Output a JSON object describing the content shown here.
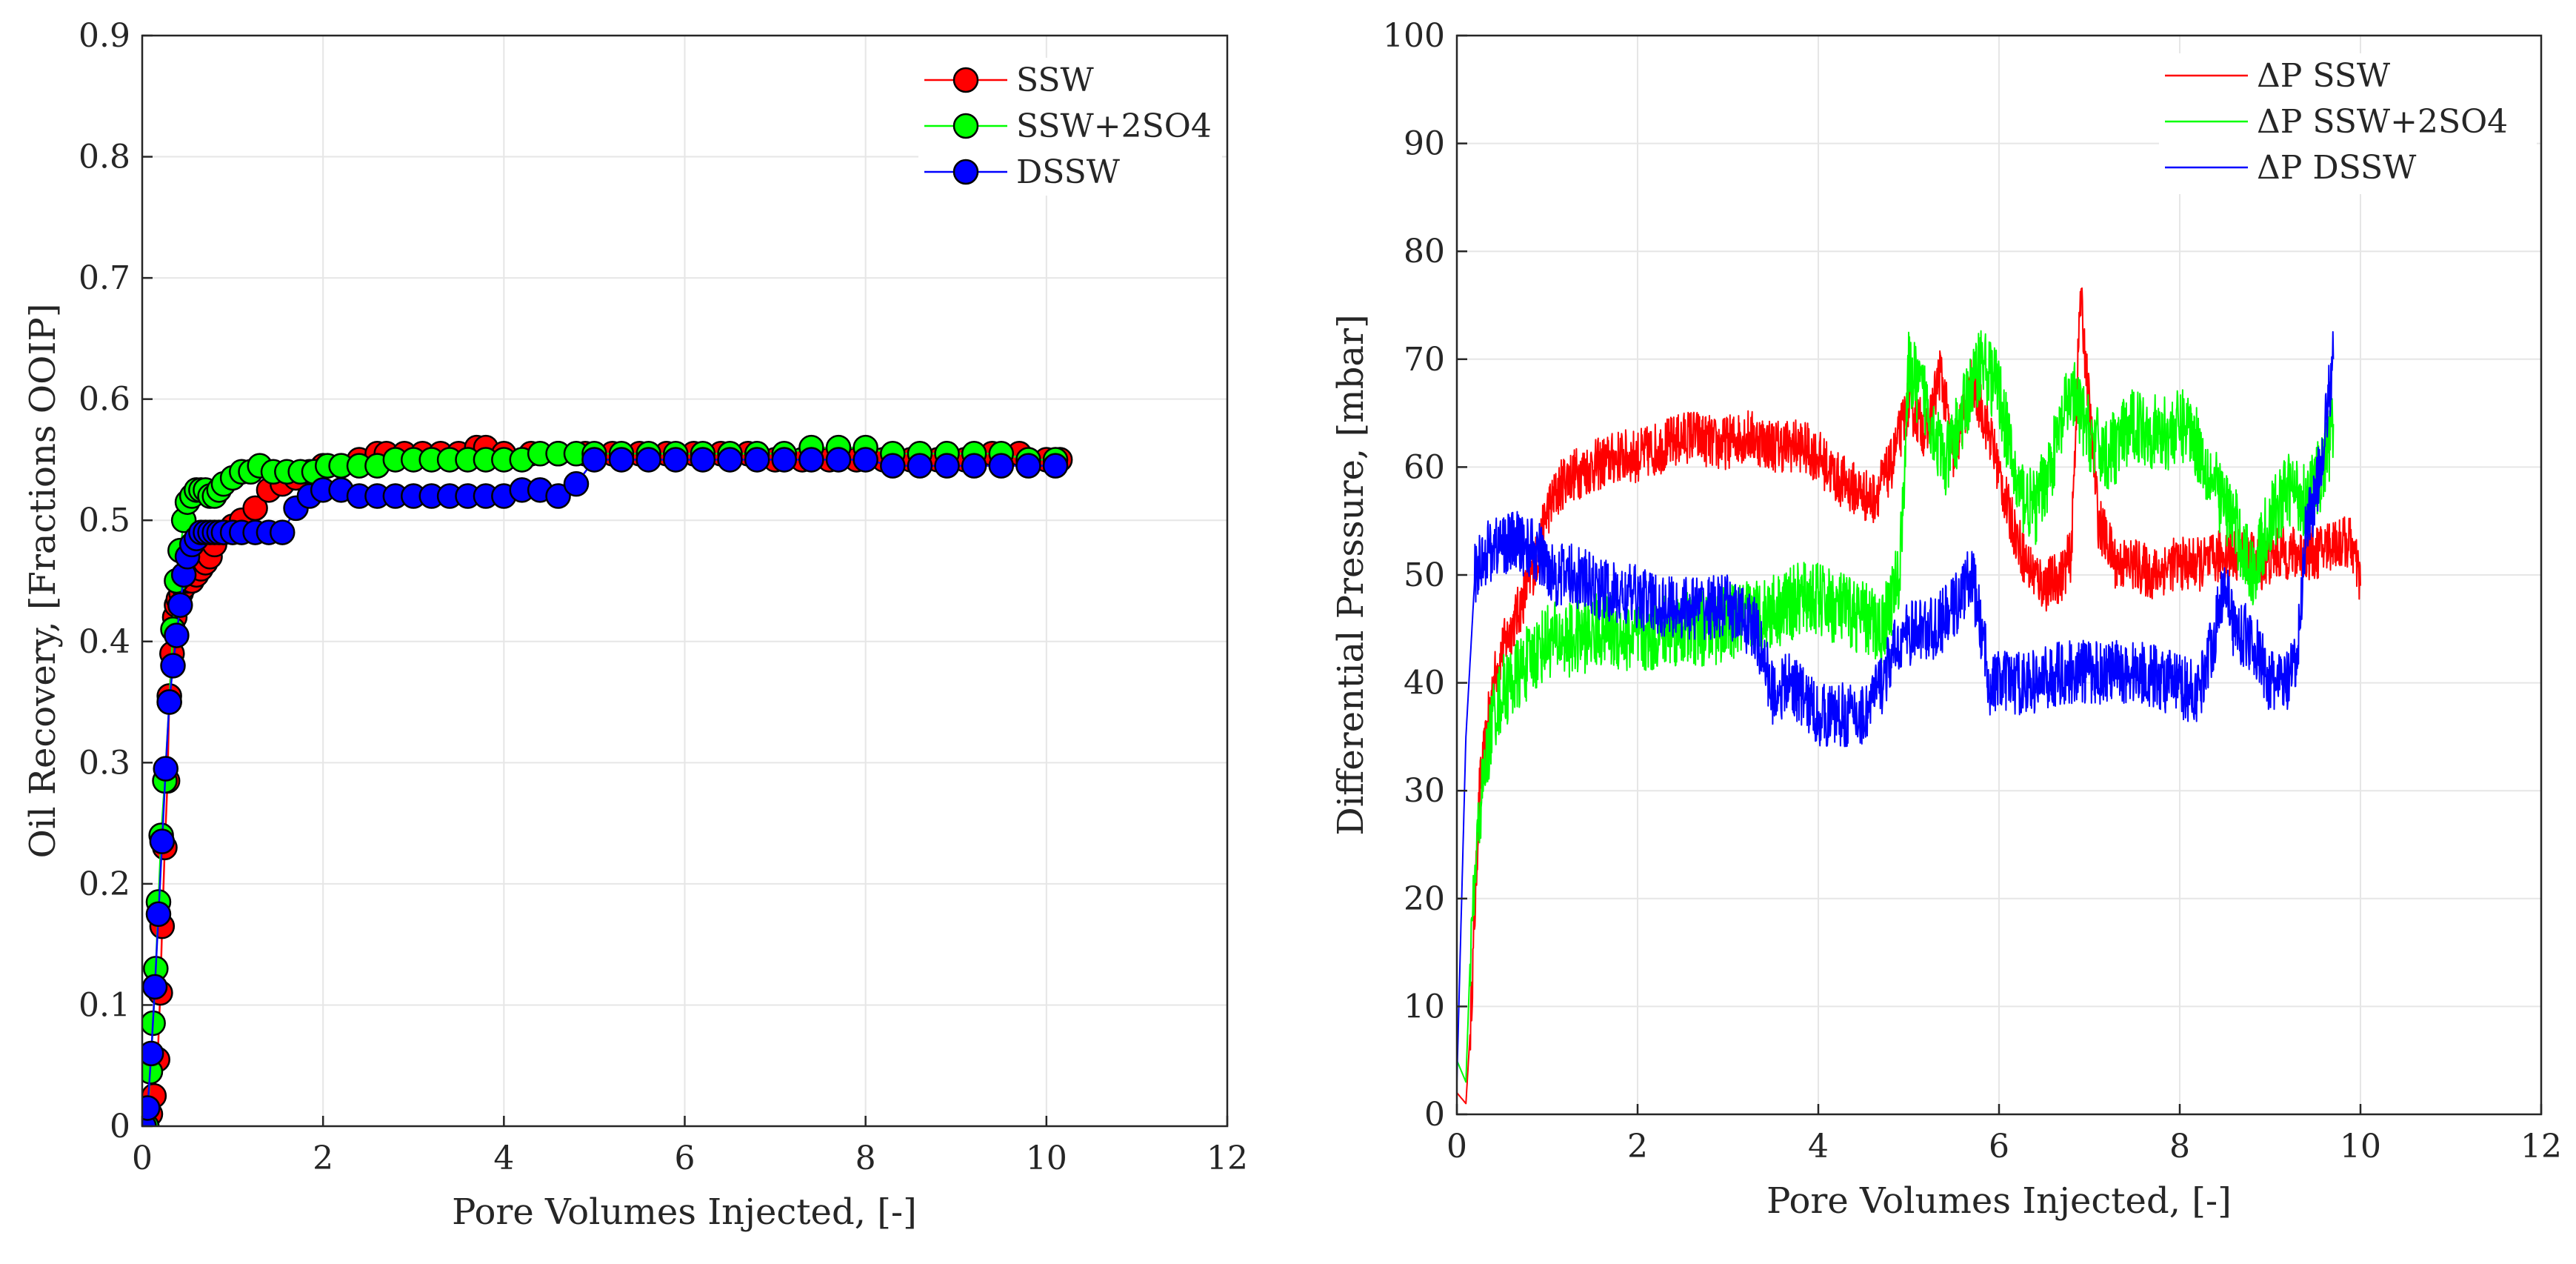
{
  "chart_data": [
    {
      "type": "scatter-line",
      "xlabel": "Pore Volumes Injected, [-]",
      "ylabel": "Oil Recovery, [Fractions OOIP]",
      "xlim": [
        0,
        12
      ],
      "ylim": [
        0,
        0.9
      ],
      "xticks": [
        "0",
        "2",
        "4",
        "6",
        "8",
        "10",
        "12"
      ],
      "yticks": [
        "0",
        "0.1",
        "0.2",
        "0.3",
        "0.4",
        "0.5",
        "0.6",
        "0.7",
        "0.8",
        "0.9"
      ],
      "grid": true,
      "legend": "top-right",
      "series": [
        {
          "name": "SSW",
          "color": "#ff0000",
          "x": [
            0.05,
            0.09,
            0.13,
            0.17,
            0.2,
            0.22,
            0.25,
            0.28,
            0.3,
            0.33,
            0.36,
            0.38,
            0.4,
            0.43,
            0.46,
            0.5,
            0.55,
            0.6,
            0.65,
            0.7,
            0.75,
            0.8,
            0.9,
            1.0,
            1.1,
            1.25,
            1.4,
            1.55,
            1.7,
            1.85,
            2.0,
            2.2,
            2.4,
            2.6,
            2.7,
            2.9,
            3.1,
            3.3,
            3.5,
            3.7,
            3.8,
            4.0,
            4.3,
            4.6,
            4.9,
            5.2,
            5.5,
            5.8,
            6.1,
            6.4,
            6.7,
            7.0,
            7.3,
            7.6,
            7.9,
            8.2,
            8.5,
            8.8,
            9.1,
            9.4,
            9.7,
            10.0,
            10.15
          ],
          "values": [
            0.0,
            0.01,
            0.025,
            0.055,
            0.11,
            0.165,
            0.23,
            0.285,
            0.355,
            0.39,
            0.42,
            0.43,
            0.435,
            0.44,
            0.445,
            0.45,
            0.45,
            0.455,
            0.46,
            0.465,
            0.47,
            0.48,
            0.49,
            0.495,
            0.5,
            0.51,
            0.525,
            0.53,
            0.535,
            0.54,
            0.545,
            0.545,
            0.55,
            0.555,
            0.555,
            0.555,
            0.555,
            0.555,
            0.555,
            0.56,
            0.56,
            0.555,
            0.555,
            0.555,
            0.555,
            0.555,
            0.555,
            0.555,
            0.555,
            0.555,
            0.555,
            0.55,
            0.55,
            0.55,
            0.55,
            0.55,
            0.55,
            0.55,
            0.55,
            0.555,
            0.555,
            0.55,
            0.55
          ]
        },
        {
          "name": "SSW+2SO4",
          "color": "#00ff00",
          "x": [
            0.05,
            0.09,
            0.12,
            0.15,
            0.18,
            0.21,
            0.25,
            0.3,
            0.34,
            0.38,
            0.42,
            0.46,
            0.5,
            0.55,
            0.6,
            0.65,
            0.7,
            0.75,
            0.8,
            0.85,
            0.9,
            1.0,
            1.1,
            1.2,
            1.3,
            1.45,
            1.6,
            1.75,
            1.9,
            2.05,
            2.2,
            2.4,
            2.6,
            2.8,
            3.0,
            3.2,
            3.4,
            3.6,
            3.8,
            4.0,
            4.2,
            4.4,
            4.6,
            4.8,
            5.0,
            5.3,
            5.6,
            5.9,
            6.2,
            6.5,
            6.8,
            7.1,
            7.4,
            7.7,
            8.0,
            8.3,
            8.6,
            8.9,
            9.2,
            9.5,
            9.8,
            10.1
          ],
          "values": [
            0.0,
            0.045,
            0.085,
            0.13,
            0.185,
            0.24,
            0.285,
            0.35,
            0.41,
            0.45,
            0.475,
            0.5,
            0.515,
            0.52,
            0.525,
            0.525,
            0.525,
            0.52,
            0.52,
            0.525,
            0.53,
            0.535,
            0.54,
            0.54,
            0.545,
            0.54,
            0.54,
            0.54,
            0.54,
            0.545,
            0.545,
            0.545,
            0.545,
            0.55,
            0.55,
            0.55,
            0.55,
            0.55,
            0.55,
            0.55,
            0.55,
            0.555,
            0.555,
            0.555,
            0.555,
            0.555,
            0.555,
            0.555,
            0.555,
            0.555,
            0.555,
            0.555,
            0.56,
            0.56,
            0.56,
            0.555,
            0.555,
            0.555,
            0.555,
            0.555,
            0.55,
            0.55
          ]
        },
        {
          "name": "DSSW",
          "color": "#0000ff",
          "x": [
            0.02,
            0.06,
            0.1,
            0.14,
            0.18,
            0.22,
            0.26,
            0.3,
            0.34,
            0.38,
            0.42,
            0.46,
            0.5,
            0.55,
            0.6,
            0.65,
            0.7,
            0.75,
            0.8,
            0.85,
            0.9,
            1.0,
            1.1,
            1.25,
            1.4,
            1.55,
            1.7,
            1.85,
            2.0,
            2.2,
            2.4,
            2.6,
            2.8,
            3.0,
            3.2,
            3.4,
            3.6,
            3.8,
            4.0,
            4.2,
            4.4,
            4.6,
            4.8,
            5.0,
            5.3,
            5.6,
            5.9,
            6.2,
            6.5,
            6.8,
            7.1,
            7.4,
            7.7,
            8.0,
            8.3,
            8.6,
            8.9,
            9.2,
            9.5,
            9.8,
            10.1
          ],
          "values": [
            0.0,
            0.015,
            0.06,
            0.115,
            0.175,
            0.235,
            0.295,
            0.35,
            0.38,
            0.405,
            0.43,
            0.455,
            0.47,
            0.48,
            0.485,
            0.49,
            0.49,
            0.49,
            0.49,
            0.49,
            0.49,
            0.49,
            0.49,
            0.49,
            0.49,
            0.49,
            0.51,
            0.52,
            0.525,
            0.525,
            0.52,
            0.52,
            0.52,
            0.52,
            0.52,
            0.52,
            0.52,
            0.52,
            0.52,
            0.525,
            0.525,
            0.52,
            0.53,
            0.55,
            0.55,
            0.55,
            0.55,
            0.55,
            0.55,
            0.55,
            0.55,
            0.55,
            0.55,
            0.55,
            0.545,
            0.545,
            0.545,
            0.545,
            0.545,
            0.545,
            0.545
          ]
        }
      ]
    },
    {
      "type": "line",
      "xlabel": "Pore Volumes Injected, [-]",
      "ylabel": "Differential Pressure, [mbar]",
      "xlim": [
        0,
        12
      ],
      "ylim": [
        0,
        100
      ],
      "xticks": [
        "0",
        "2",
        "4",
        "6",
        "8",
        "10",
        "12"
      ],
      "yticks": [
        "0",
        "10",
        "20",
        "30",
        "40",
        "50",
        "60",
        "70",
        "80",
        "90",
        "100"
      ],
      "grid": true,
      "legend": "top-right",
      "series": [
        {
          "name": "ΔP SSW",
          "color": "#ff0000",
          "x": [
            0,
            0.1,
            0.15,
            0.25,
            0.4,
            0.5,
            0.7,
            0.9,
            1.0,
            1.2,
            1.5,
            1.8,
            2.0,
            2.3,
            2.6,
            2.9,
            3.2,
            3.5,
            3.8,
            4.0,
            4.2,
            4.4,
            4.6,
            4.8,
            5.0,
            5.2,
            5.35,
            5.5,
            5.7,
            5.9,
            6.1,
            6.3,
            6.5,
            6.7,
            6.8,
            6.9,
            7.1,
            7.3,
            7.5,
            7.7,
            7.9,
            8.1,
            8.3,
            8.5,
            8.7,
            8.9,
            9.1,
            9.3,
            9.5,
            9.7,
            9.9,
            10.0
          ],
          "values": [
            2,
            1,
            8,
            30,
            40,
            43,
            47,
            52,
            56,
            59,
            60,
            61,
            61,
            62,
            63,
            62,
            63,
            62,
            62,
            61,
            59,
            58,
            57,
            60,
            66,
            63,
            69,
            61,
            68,
            63,
            56,
            51,
            49,
            50,
            52,
            76,
            55,
            51,
            51,
            50,
            51,
            51,
            51,
            52,
            52,
            51,
            52,
            52,
            52,
            53,
            53,
            49
          ],
          "noise": 2.5
        },
        {
          "name": "ΔP SSW+2SO4",
          "color": "#00ff00",
          "x": [
            0,
            0.1,
            0.15,
            0.25,
            0.4,
            0.5,
            0.7,
            0.9,
            1.0,
            1.3,
            1.6,
            2.0,
            2.4,
            2.8,
            3.2,
            3.6,
            3.9,
            4.2,
            4.5,
            4.7,
            4.9,
            5.0,
            5.2,
            5.4,
            5.6,
            5.8,
            6.0,
            6.2,
            6.4,
            6.6,
            6.8,
            7.0,
            7.2,
            7.5,
            7.8,
            8.1,
            8.4,
            8.6,
            8.8,
            9.0,
            9.2,
            9.4,
            9.6,
            9.7
          ],
          "values": [
            5,
            3,
            15,
            28,
            37,
            39,
            41,
            43,
            44,
            44,
            45,
            44,
            45,
            45,
            46,
            47,
            48,
            47,
            46,
            45,
            50,
            69,
            66,
            60,
            65,
            70,
            67,
            58,
            56,
            61,
            67,
            63,
            61,
            64,
            63,
            64,
            58,
            55,
            50,
            55,
            58,
            57,
            60,
            64
          ],
          "noise": 3.5
        },
        {
          "name": "ΔP DSSW",
          "color": "#0000ff",
          "x": [
            0,
            0.1,
            0.2,
            0.3,
            0.5,
            0.7,
            0.9,
            1.1,
            1.3,
            1.5,
            1.8,
            2.0,
            2.3,
            2.6,
            3.0,
            3.3,
            3.5,
            3.7,
            4.0,
            4.3,
            4.5,
            4.7,
            4.9,
            5.1,
            5.3,
            5.5,
            5.7,
            5.9,
            6.1,
            6.4,
            6.7,
            7.0,
            7.3,
            7.6,
            7.9,
            8.2,
            8.4,
            8.5,
            8.6,
            8.8,
            9.0,
            9.2,
            9.3,
            9.4,
            9.5,
            9.6,
            9.7
          ],
          "values": [
            3,
            35,
            50,
            52,
            53,
            53,
            52,
            50,
            50,
            49,
            48,
            48,
            47,
            47,
            47,
            45,
            39,
            40,
            37,
            37,
            37,
            40,
            44,
            45,
            45,
            47,
            50,
            40,
            40,
            40,
            41,
            41,
            41,
            41,
            40,
            39,
            45,
            50,
            45,
            44,
            40,
            40,
            42,
            55,
            57,
            63,
            70
          ],
          "noise": 3.0
        }
      ]
    }
  ]
}
